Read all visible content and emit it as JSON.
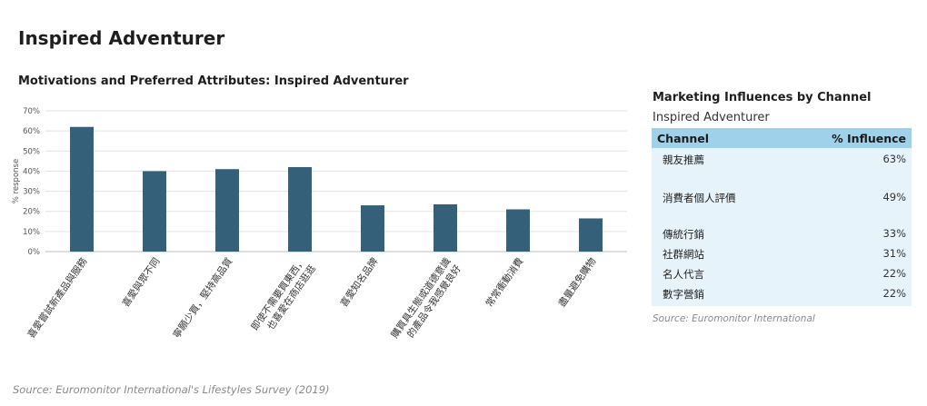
{
  "page": {
    "title": "Inspired Adventurer",
    "footer_source": "Source: Euromonitor International's Lifestyles Survey (2019)"
  },
  "chart_data": {
    "type": "bar",
    "title": "Motivations and Preferred Attributes: Inspired Adventurer",
    "xlabel": "",
    "ylabel": "% response",
    "ylim": [
      0,
      70
    ],
    "yticks": [
      "0%",
      "10%",
      "20%",
      "30%",
      "40%",
      "50%",
      "60%",
      "70%"
    ],
    "ytick_values": [
      0,
      10,
      20,
      30,
      40,
      50,
      60,
      70
    ],
    "grid": true,
    "bar_color": "#35607a",
    "categories": [
      [
        "喜愛嘗試新產品與服務"
      ],
      [
        "喜愛與眾不同"
      ],
      [
        "寧願少買，堅持高品質"
      ],
      [
        "即使不需要買東西，",
        "也喜愛在商店逛逛"
      ],
      [
        "喜愛知名品牌"
      ],
      [
        "購買具生態或道德意識",
        "的產品令我感覺良好"
      ],
      [
        "常常衝動消費"
      ],
      [
        "盡量避免購物"
      ]
    ],
    "values": [
      62,
      40,
      41,
      42,
      23,
      23.5,
      21,
      16.5
    ]
  },
  "side_table": {
    "title": "Marketing Influences by Channel",
    "subtitle": "Inspired Adventurer",
    "headers": [
      "Channel",
      "% Influence"
    ],
    "header_color": "#9fd1ea",
    "body_color": "#e6f3fa",
    "rows": [
      {
        "channel": "親友推薦",
        "value": "63%"
      },
      {
        "channel": "消費者個人評價",
        "value": "49%"
      },
      {
        "channel": "傳統行銷",
        "value": "33%"
      },
      {
        "channel": "社群網站",
        "value": "31%"
      },
      {
        "channel": "名人代言",
        "value": "22%"
      },
      {
        "channel": "數字營銷",
        "value": "22%"
      }
    ],
    "source": "Source: Euromonitor International"
  }
}
